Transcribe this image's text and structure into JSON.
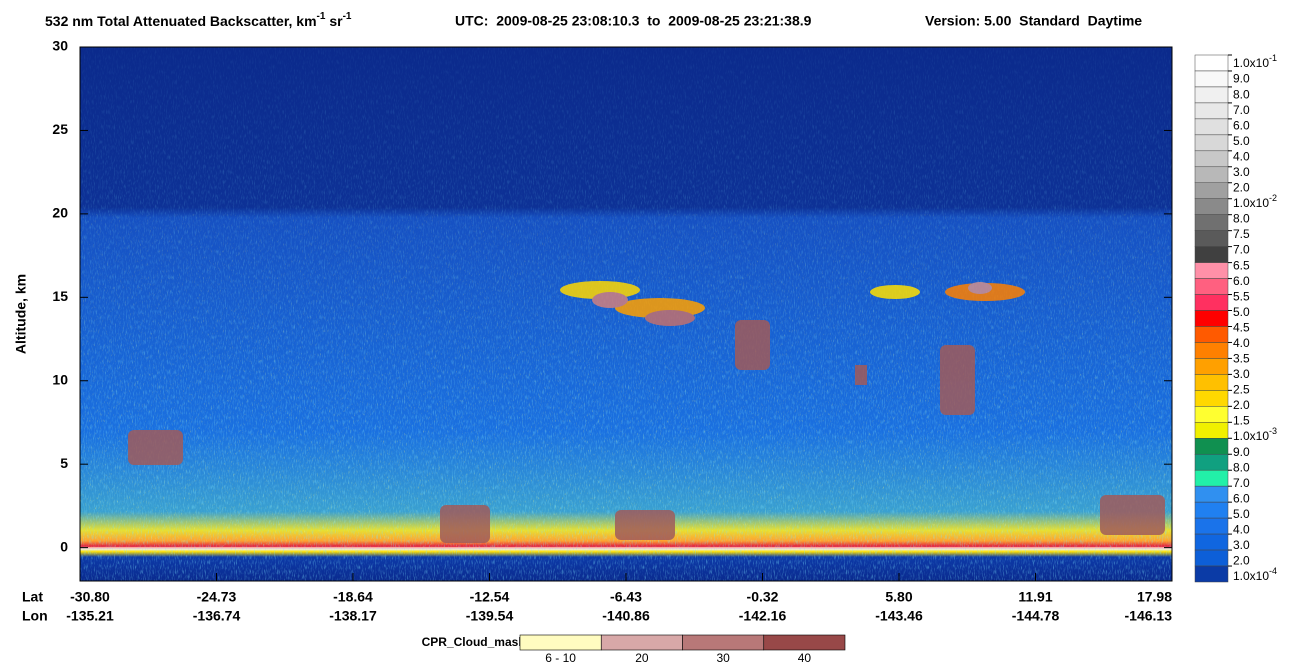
{
  "chart_data": {
    "type": "heatmap",
    "title": {
      "main": "532 nm Total Attenuated Backscatter, km",
      "sup1": "-1",
      "mid": " sr",
      "sup2": "-1",
      "utc": "UTC:  2009-08-25 23:08:10.3  to  2009-08-25 23:21:38.9",
      "version": "Version: 5.00  Standard  Daytime"
    },
    "y_label": "Altitude, km",
    "ylim": [
      -2,
      30
    ],
    "yticks": [
      0,
      5,
      10,
      15,
      20,
      25,
      30
    ],
    "lat_label": "Lat",
    "lon_label": "Lon",
    "lat": [
      "-30.80",
      "-24.73",
      "-18.64",
      "-12.54",
      "-6.43",
      "-0.32",
      "5.80",
      "11.91",
      "17.98"
    ],
    "lon": [
      "-135.21",
      "-136.74",
      "-138.17",
      "-139.54",
      "-140.86",
      "-142.16",
      "-143.46",
      "-144.78",
      "-146.13"
    ],
    "colorbar": {
      "labels": [
        {
          "base": "1.0x10",
          "exp": "-1"
        },
        "9.0",
        "8.0",
        "7.0",
        "6.0",
        "5.0",
        "4.0",
        "3.0",
        "2.0",
        {
          "base": "1.0x10",
          "exp": "-2"
        },
        "8.0",
        "7.5",
        "7.0",
        "6.5",
        "6.0",
        "5.5",
        "5.0",
        "4.5",
        "4.0",
        "3.5",
        "3.0",
        "2.5",
        "2.0",
        "1.5",
        {
          "base": "1.0x10",
          "exp": "-3"
        },
        "9.0",
        "8.0",
        "7.0",
        "6.0",
        "5.0",
        "4.0",
        "3.0",
        "2.0",
        {
          "base": "1.0x10",
          "exp": "-4"
        }
      ],
      "colors": [
        "#ffffff",
        "#f8f8f8",
        "#f0f0f0",
        "#e8e8e8",
        "#e0e0e0",
        "#d8d8d8",
        "#c8c8c8",
        "#b8b8b8",
        "#a0a0a0",
        "#8a8a8a",
        "#707070",
        "#5a5a5a",
        "#404040",
        "#ff90a8",
        "#ff6080",
        "#ff3060",
        "#ff0000",
        "#ff5a00",
        "#ff8000",
        "#ffa000",
        "#ffc000",
        "#ffd800",
        "#ffff30",
        "#f0f000",
        "#109050",
        "#10a080",
        "#22f0a8",
        "#3090f0",
        "#2080f0",
        "#1a73ea",
        "#1066e0",
        "#0d5fd8",
        "#0b3ba6"
      ]
    },
    "cloud_mask": {
      "title": "CPR_Cloud_mask",
      "labels": [
        "6 - 10",
        "20",
        "30",
        "40"
      ],
      "colors": [
        "#fffcc0",
        "#d8a8a8",
        "#b87878",
        "#984848"
      ]
    }
  }
}
